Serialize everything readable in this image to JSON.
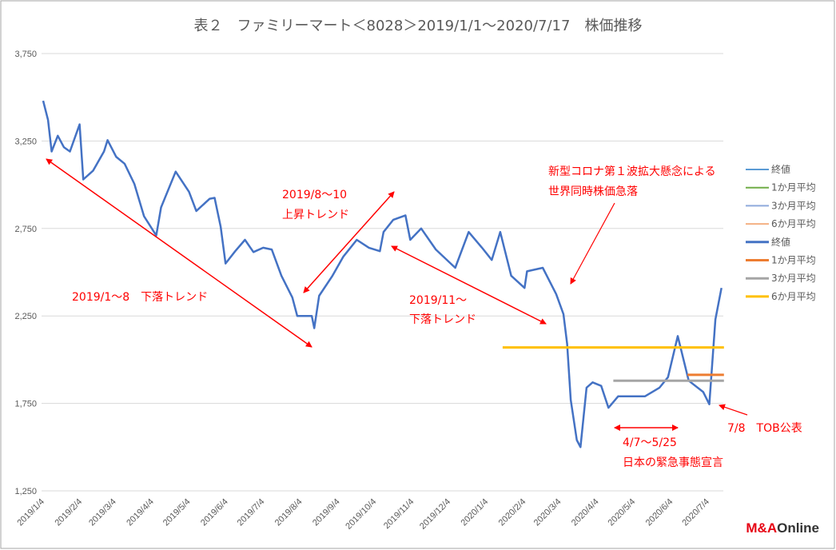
{
  "chart_data": {
    "type": "line",
    "title": "表２　ファミリーマート＜8028＞2019/1/1～2020/7/17　株価推移",
    "ylim": [
      1250,
      3750
    ],
    "yticks": [
      "1,250",
      "1,750",
      "2,250",
      "2,750",
      "3,250",
      "3,750"
    ],
    "ytick_values": [
      1250,
      1750,
      2250,
      2750,
      3250,
      3750
    ],
    "xticks": [
      "2019/1/4",
      "2019/2/4",
      "2019/3/4",
      "2019/4/4",
      "2019/5/4",
      "2019/6/4",
      "2019/7/4",
      "2019/8/4",
      "2019/9/4",
      "2019/10/4",
      "2019/11/4",
      "2019/12/4",
      "2020/1/4",
      "2020/2/4",
      "2020/3/4",
      "2020/4/4",
      "2020/5/4",
      "2020/6/4",
      "2020/7/4"
    ],
    "grid": "horizontal",
    "legend_placement": "right",
    "legend": [
      {
        "name": "終値",
        "color": "#5b9bd5"
      },
      {
        "name": "1か月平均",
        "color": "#70ad47"
      },
      {
        "name": "3か月平均",
        "color": "#8faadc"
      },
      {
        "name": "6か月平均",
        "color": "#f4b183"
      },
      {
        "name": "終値",
        "color": "#4472c4"
      },
      {
        "name": "1か月平均",
        "color": "#ed7d31"
      },
      {
        "name": "3か月平均",
        "color": "#a5a5a5"
      },
      {
        "name": "6か月平均",
        "color": "#ffc000"
      }
    ],
    "series": [
      {
        "name": "終値",
        "color": "#4472c4",
        "points": [
          [
            "2019-01-04",
            3480
          ],
          [
            "2019-01-08",
            3370
          ],
          [
            "2019-01-11",
            3190
          ],
          [
            "2019-01-16",
            3280
          ],
          [
            "2019-01-21",
            3215
          ],
          [
            "2019-01-26",
            3190
          ],
          [
            "2019-02-03",
            3345
          ],
          [
            "2019-02-06",
            3030
          ],
          [
            "2019-02-14",
            3080
          ],
          [
            "2019-02-23",
            3190
          ],
          [
            "2019-02-26",
            3255
          ],
          [
            "2019-03-05",
            3160
          ],
          [
            "2019-03-12",
            3120
          ],
          [
            "2019-03-20",
            3005
          ],
          [
            "2019-03-28",
            2820
          ],
          [
            "2019-04-07",
            2710
          ],
          [
            "2019-04-11",
            2870
          ],
          [
            "2019-04-23",
            3075
          ],
          [
            "2019-05-04",
            2960
          ],
          [
            "2019-05-10",
            2850
          ],
          [
            "2019-05-21",
            2920
          ],
          [
            "2019-05-25",
            2925
          ],
          [
            "2019-05-30",
            2760
          ],
          [
            "2019-06-03",
            2550
          ],
          [
            "2019-06-11",
            2620
          ],
          [
            "2019-06-19",
            2685
          ],
          [
            "2019-06-26",
            2615
          ],
          [
            "2019-07-04",
            2640
          ],
          [
            "2019-07-11",
            2630
          ],
          [
            "2019-07-19",
            2480
          ],
          [
            "2019-07-28",
            2355
          ],
          [
            "2019-08-01",
            2250
          ],
          [
            "2019-08-13",
            2250
          ],
          [
            "2019-08-15",
            2180
          ],
          [
            "2019-08-19",
            2365
          ],
          [
            "2019-08-30",
            2480
          ],
          [
            "2019-09-08",
            2590
          ],
          [
            "2019-09-19",
            2685
          ],
          [
            "2019-09-29",
            2640
          ],
          [
            "2019-10-08",
            2620
          ],
          [
            "2019-10-11",
            2730
          ],
          [
            "2019-10-19",
            2800
          ],
          [
            "2019-10-29",
            2825
          ],
          [
            "2019-11-02",
            2685
          ],
          [
            "2019-11-11",
            2750
          ],
          [
            "2019-11-23",
            2630
          ],
          [
            "2019-12-09",
            2525
          ],
          [
            "2019-12-20",
            2730
          ],
          [
            "2019-12-31",
            2640
          ],
          [
            "2020-01-08",
            2570
          ],
          [
            "2020-01-15",
            2730
          ],
          [
            "2020-01-24",
            2480
          ],
          [
            "2020-02-04",
            2410
          ],
          [
            "2020-02-06",
            2505
          ],
          [
            "2020-02-19",
            2525
          ],
          [
            "2020-03-01",
            2375
          ],
          [
            "2020-03-07",
            2260
          ],
          [
            "2020-03-10",
            2090
          ],
          [
            "2020-03-13",
            1770
          ],
          [
            "2020-03-18",
            1540
          ],
          [
            "2020-03-21",
            1500
          ],
          [
            "2020-03-26",
            1840
          ],
          [
            "2020-03-31",
            1870
          ],
          [
            "2020-04-07",
            1850
          ],
          [
            "2020-04-13",
            1725
          ],
          [
            "2020-04-21",
            1790
          ],
          [
            "2020-05-02",
            1790
          ],
          [
            "2020-05-13",
            1790
          ],
          [
            "2020-05-25",
            1840
          ],
          [
            "2020-06-01",
            1900
          ],
          [
            "2020-06-09",
            2135
          ],
          [
            "2020-06-18",
            1880
          ],
          [
            "2020-06-30",
            1815
          ],
          [
            "2020-07-05",
            1745
          ],
          [
            "2020-07-10",
            2230
          ],
          [
            "2020-07-15",
            2410
          ]
        ]
      },
      {
        "name": "6か月平均",
        "color": "#ffc000",
        "points": [
          [
            "2020-01-17",
            2070
          ],
          [
            "2020-07-17",
            2070
          ]
        ]
      },
      {
        "name": "3か月平均",
        "color": "#a5a5a5",
        "points": [
          [
            "2020-04-17",
            1880
          ],
          [
            "2020-07-17",
            1880
          ]
        ]
      },
      {
        "name": "1か月平均",
        "color": "#ed7d31",
        "points": [
          [
            "2020-06-17",
            1913
          ],
          [
            "2020-07-17",
            1913
          ]
        ]
      }
    ],
    "annotations": [
      {
        "id": "a1",
        "lines": [
          "2019/1～8　下落トレンド"
        ]
      },
      {
        "id": "a2",
        "lines": [
          "2019/8～10",
          "上昇トレンド"
        ]
      },
      {
        "id": "a3",
        "lines": [
          "2019/11～",
          "下落トレンド"
        ]
      },
      {
        "id": "a4",
        "lines": [
          "新型コロナ第１波拡大懸念による",
          "世界同時株価急落"
        ]
      },
      {
        "id": "a5",
        "lines": [
          "4/7～5/25",
          "日本の緊急事態宣言"
        ]
      },
      {
        "id": "a6",
        "lines": [
          "7/8　TOB公表"
        ]
      }
    ],
    "annotation_color": "#ff0000"
  },
  "logo": {
    "text_red": "M&A",
    "text_dark": "Online"
  }
}
